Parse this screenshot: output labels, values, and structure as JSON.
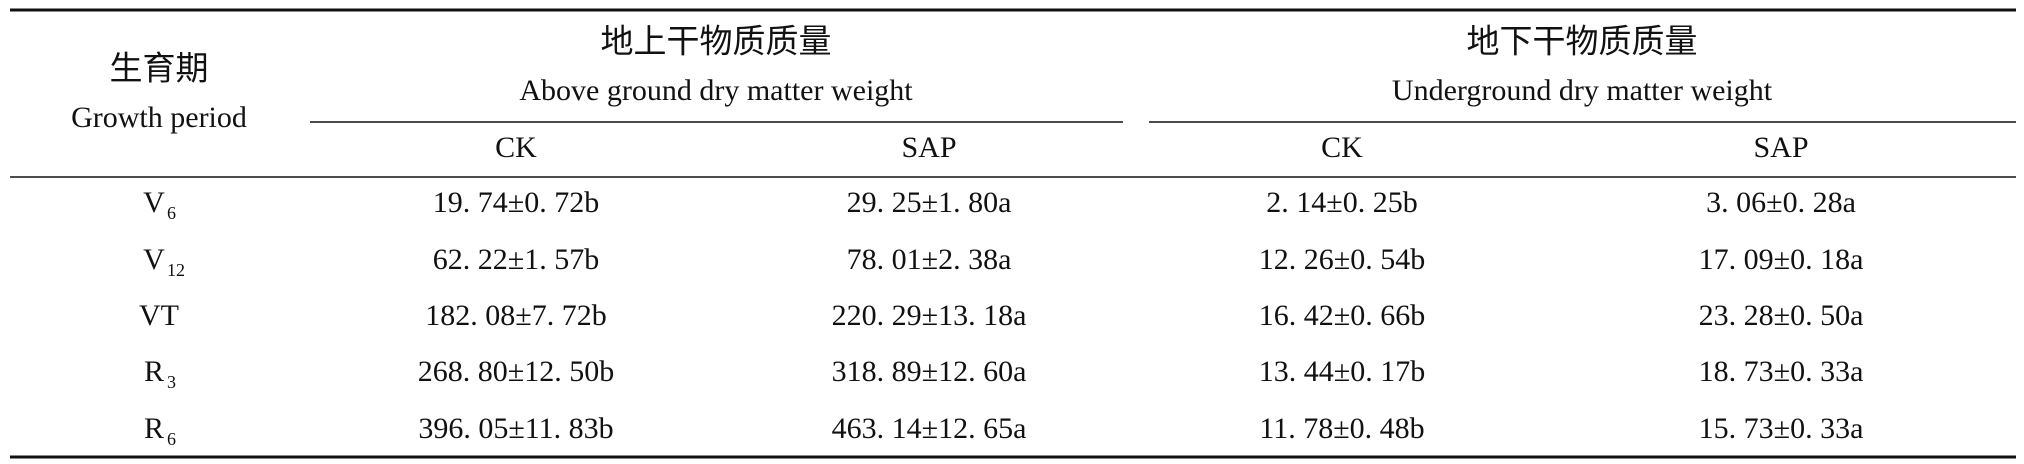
{
  "table": {
    "header": {
      "period": {
        "zh": "生育期",
        "en": "Growth period"
      },
      "groups": [
        {
          "zh": "地上干物质质量",
          "en": "Above ground dry matter weight",
          "columns": [
            "CK",
            "SAP"
          ]
        },
        {
          "zh": "地下干物质质量",
          "en": "Underground dry matter weight",
          "columns": [
            "CK",
            "SAP"
          ]
        }
      ]
    },
    "rows": [
      {
        "period": {
          "main": "V",
          "sub": "6"
        },
        "cells": [
          "19. 74±0. 72b",
          "29. 25±1. 80a",
          "2. 14±0. 25b",
          "3. 06±0. 28a"
        ]
      },
      {
        "period": {
          "main": "V",
          "sub": "12"
        },
        "cells": [
          "62. 22±1. 57b",
          "78. 01±2. 38a",
          "12. 26±0. 54b",
          "17. 09±0. 18a"
        ]
      },
      {
        "period": {
          "main": "VT"
        },
        "cells": [
          "182. 08±7. 72b",
          "220. 29±13. 18a",
          "16. 42±0. 66b",
          "23. 28±0. 50a"
        ]
      },
      {
        "period": {
          "main": "R",
          "sub": "3"
        },
        "cells": [
          "268. 80±12. 50b",
          "318. 89±12. 60a",
          "13. 44±0. 17b",
          "18. 73±0. 33a"
        ]
      },
      {
        "period": {
          "main": "R",
          "sub": "6"
        },
        "cells": [
          "396. 05±11. 83b",
          "463. 14±12. 65a",
          "11. 78±0. 48b",
          "15. 73±0. 33a"
        ]
      }
    ]
  }
}
